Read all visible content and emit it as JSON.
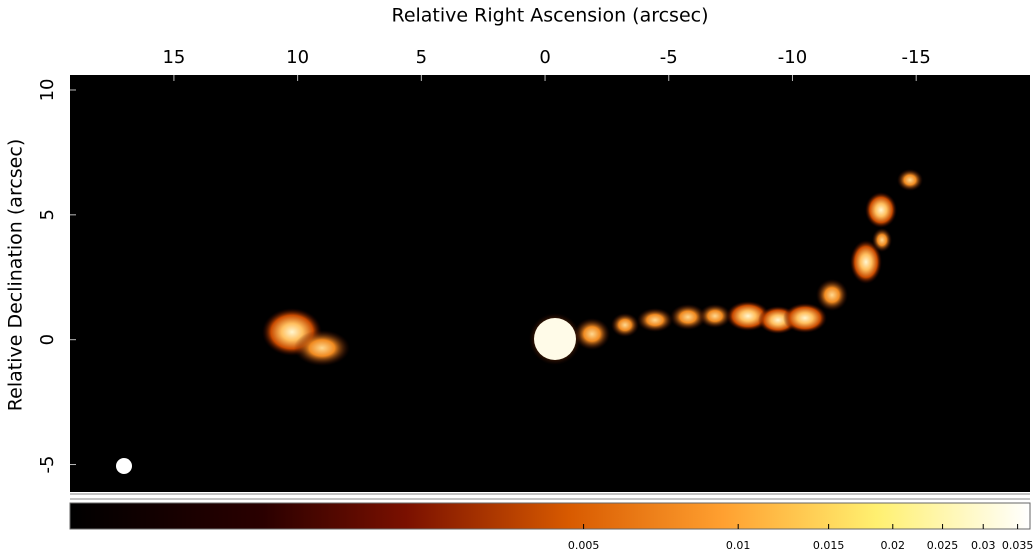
{
  "chart_data": {
    "type": "image",
    "xlabel": "Relative Right Ascension (arcsec)",
    "ylabel": "Relative Declination (arcsec)",
    "xlim": [
      19.2,
      -19.6
    ],
    "xticks": [
      15,
      10,
      5,
      0,
      -5,
      -10,
      -15
    ],
    "ylim": [
      -6.1,
      10.6
    ],
    "yticks": [
      10,
      5,
      0,
      -5
    ],
    "colorbar": {
      "clim": [
        0.0005,
        0.037
      ],
      "log": true,
      "ticks": [
        0.005,
        0.01,
        0.015,
        0.02,
        0.025,
        0.03,
        0.035
      ]
    }
  }
}
